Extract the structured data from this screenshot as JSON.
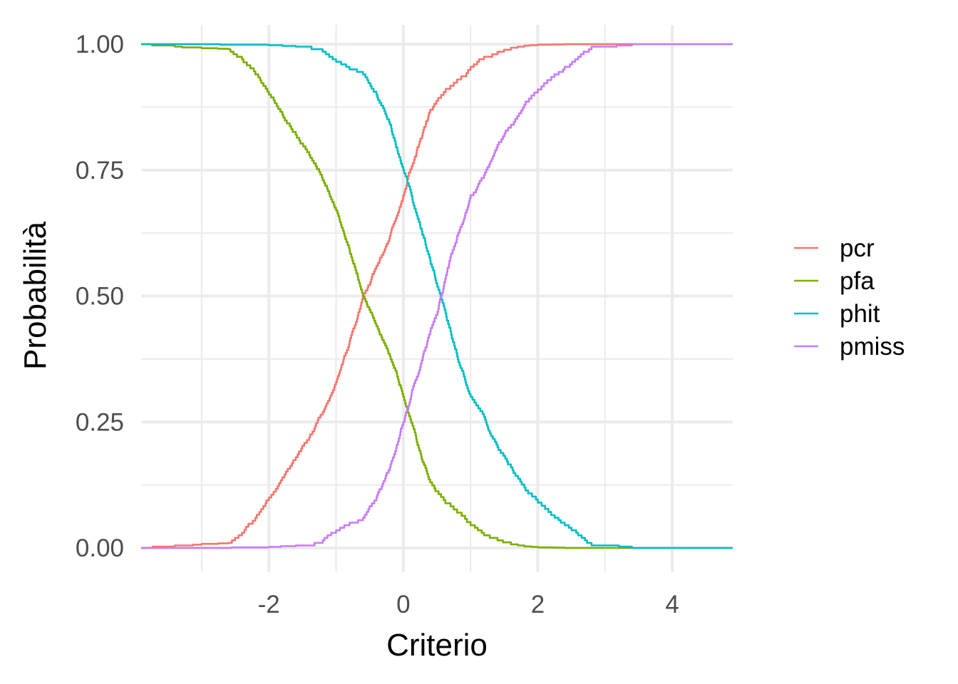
{
  "chart_data": {
    "type": "line",
    "title": "",
    "xlabel": "Criterio",
    "ylabel": "Probabilità",
    "xlim": [
      -3.9,
      4.9
    ],
    "ylim": [
      0,
      1
    ],
    "x_ticks": [
      -2,
      0,
      2,
      4
    ],
    "x_tick_labels": [
      "-2",
      "0",
      "2",
      "4"
    ],
    "y_ticks": [
      0,
      0.25,
      0.5,
      0.75,
      1
    ],
    "y_tick_labels": [
      "0.00",
      "0.25",
      "0.50",
      "0.75",
      "1.00"
    ],
    "grid": true,
    "legend_position": "right",
    "series": [
      {
        "name": "pcr",
        "color": "#F8766D",
        "x": [
          -3.9,
          -3.4,
          -3.0,
          -2.6,
          -2.4,
          -2.2,
          -2.0,
          -1.8,
          -1.6,
          -1.4,
          -1.2,
          -1.0,
          -0.8,
          -0.6,
          -0.4,
          -0.2,
          0.0,
          0.2,
          0.4,
          0.6,
          0.8,
          1.0,
          1.2,
          1.4,
          1.6,
          1.8,
          2.0,
          2.4,
          3.4
        ],
        "values": [
          0.0,
          0.005,
          0.008,
          0.01,
          0.03,
          0.06,
          0.1,
          0.14,
          0.18,
          0.22,
          0.27,
          0.33,
          0.41,
          0.5,
          0.56,
          0.62,
          0.7,
          0.79,
          0.87,
          0.905,
          0.93,
          0.955,
          0.975,
          0.985,
          0.993,
          0.997,
          0.999,
          1.0,
          1.0
        ]
      },
      {
        "name": "pfa",
        "color": "#7CAE00",
        "x": [
          -3.9,
          -3.4,
          -3.0,
          -2.6,
          -2.4,
          -2.2,
          -2.0,
          -1.8,
          -1.6,
          -1.4,
          -1.2,
          -1.0,
          -0.8,
          -0.6,
          -0.4,
          -0.2,
          0.0,
          0.2,
          0.4,
          0.6,
          0.8,
          1.0,
          1.2,
          1.4,
          1.6,
          1.8,
          2.0,
          2.4,
          3.4
        ],
        "values": [
          1.0,
          0.995,
          0.992,
          0.99,
          0.97,
          0.94,
          0.9,
          0.86,
          0.82,
          0.78,
          0.73,
          0.67,
          0.59,
          0.5,
          0.44,
          0.38,
          0.3,
          0.21,
          0.13,
          0.095,
          0.07,
          0.045,
          0.025,
          0.015,
          0.007,
          0.003,
          0.001,
          0.0,
          0.0
        ]
      },
      {
        "name": "phit",
        "color": "#00BFC4",
        "x": [
          -3.9,
          -3.0,
          -2.0,
          -1.6,
          -1.2,
          -1.0,
          -0.8,
          -0.6,
          -0.4,
          -0.2,
          0.0,
          0.2,
          0.4,
          0.6,
          0.8,
          1.0,
          1.2,
          1.4,
          1.6,
          1.8,
          2.0,
          2.2,
          2.4,
          2.6,
          2.8,
          3.4,
          4.9
        ],
        "values": [
          1.0,
          1.0,
          0.998,
          0.995,
          0.985,
          0.965,
          0.95,
          0.94,
          0.9,
          0.84,
          0.75,
          0.66,
          0.57,
          0.48,
          0.38,
          0.3,
          0.26,
          0.2,
          0.16,
          0.12,
          0.09,
          0.065,
          0.045,
          0.025,
          0.005,
          0.0,
          0.0
        ]
      },
      {
        "name": "pmiss",
        "color": "#C77CFF",
        "x": [
          -3.9,
          -3.0,
          -2.0,
          -1.6,
          -1.2,
          -1.0,
          -0.8,
          -0.6,
          -0.4,
          -0.2,
          0.0,
          0.2,
          0.4,
          0.6,
          0.8,
          1.0,
          1.2,
          1.4,
          1.6,
          1.8,
          2.0,
          2.2,
          2.4,
          2.6,
          2.8,
          3.4,
          4.9
        ],
        "values": [
          0.0,
          0.0,
          0.002,
          0.005,
          0.015,
          0.035,
          0.05,
          0.06,
          0.1,
          0.16,
          0.25,
          0.34,
          0.43,
          0.52,
          0.62,
          0.7,
          0.74,
          0.8,
          0.84,
          0.88,
          0.91,
          0.935,
          0.955,
          0.975,
          0.995,
          1.0,
          1.0
        ]
      }
    ]
  }
}
